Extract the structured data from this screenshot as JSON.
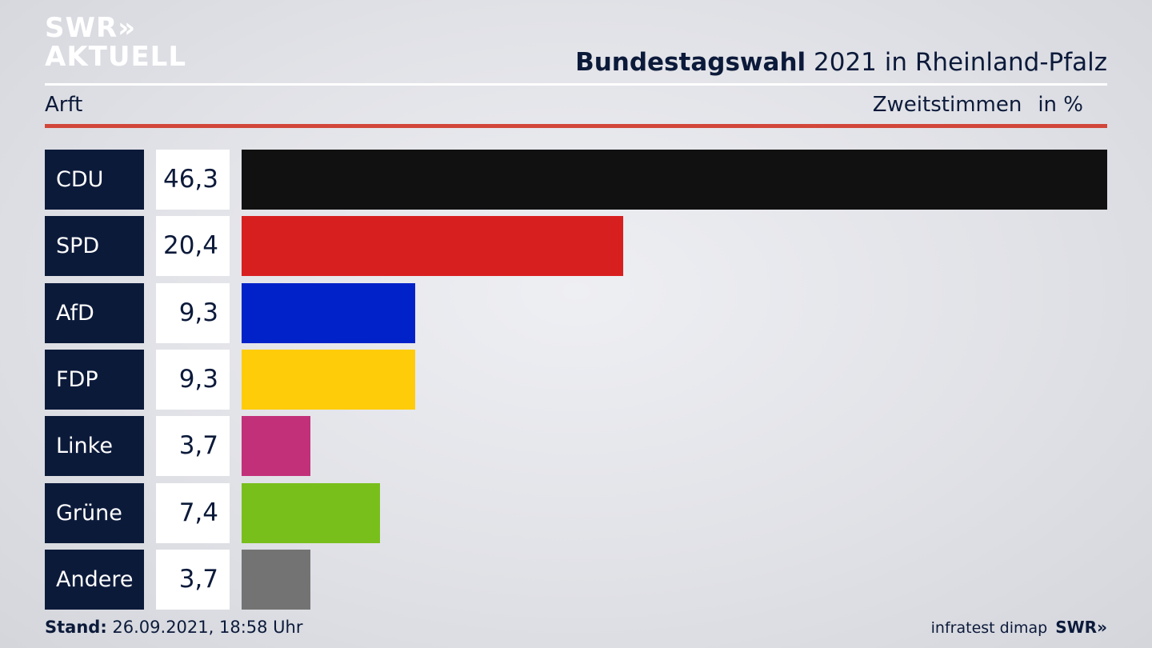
{
  "logo": {
    "line1": "SWR»",
    "line2": "AKTUELL"
  },
  "header": {
    "title_bold": "Bundestagswahl",
    "title_rest": " 2021 in Rheinland-Pfalz",
    "region": "Arft",
    "measure": "Zweitstimmen",
    "unit": "in %"
  },
  "chart_data": {
    "type": "bar",
    "orientation": "horizontal",
    "categories": [
      "CDU",
      "SPD",
      "AfD",
      "FDP",
      "Linke",
      "Grüne",
      "Andere"
    ],
    "values": [
      46.3,
      20.4,
      9.3,
      9.3,
      3.7,
      7.4,
      3.7
    ],
    "value_labels": [
      "46,3",
      "20,4",
      "9,3",
      "9,3",
      "3,7",
      "7,4",
      "3,7"
    ],
    "colors": [
      "#111111",
      "#d81f1f",
      "#0022c8",
      "#ffcc0a",
      "#c2307a",
      "#79bf1c",
      "#737373"
    ],
    "xlim": [
      0,
      46.3
    ],
    "title": "Bundestagswahl 2021 in Rheinland-Pfalz"
  },
  "footer": {
    "stand_label": "Stand:",
    "stand_value": " 26.09.2021, 18:58 Uhr",
    "source": "infratest dimap",
    "brand": "SWR»"
  }
}
